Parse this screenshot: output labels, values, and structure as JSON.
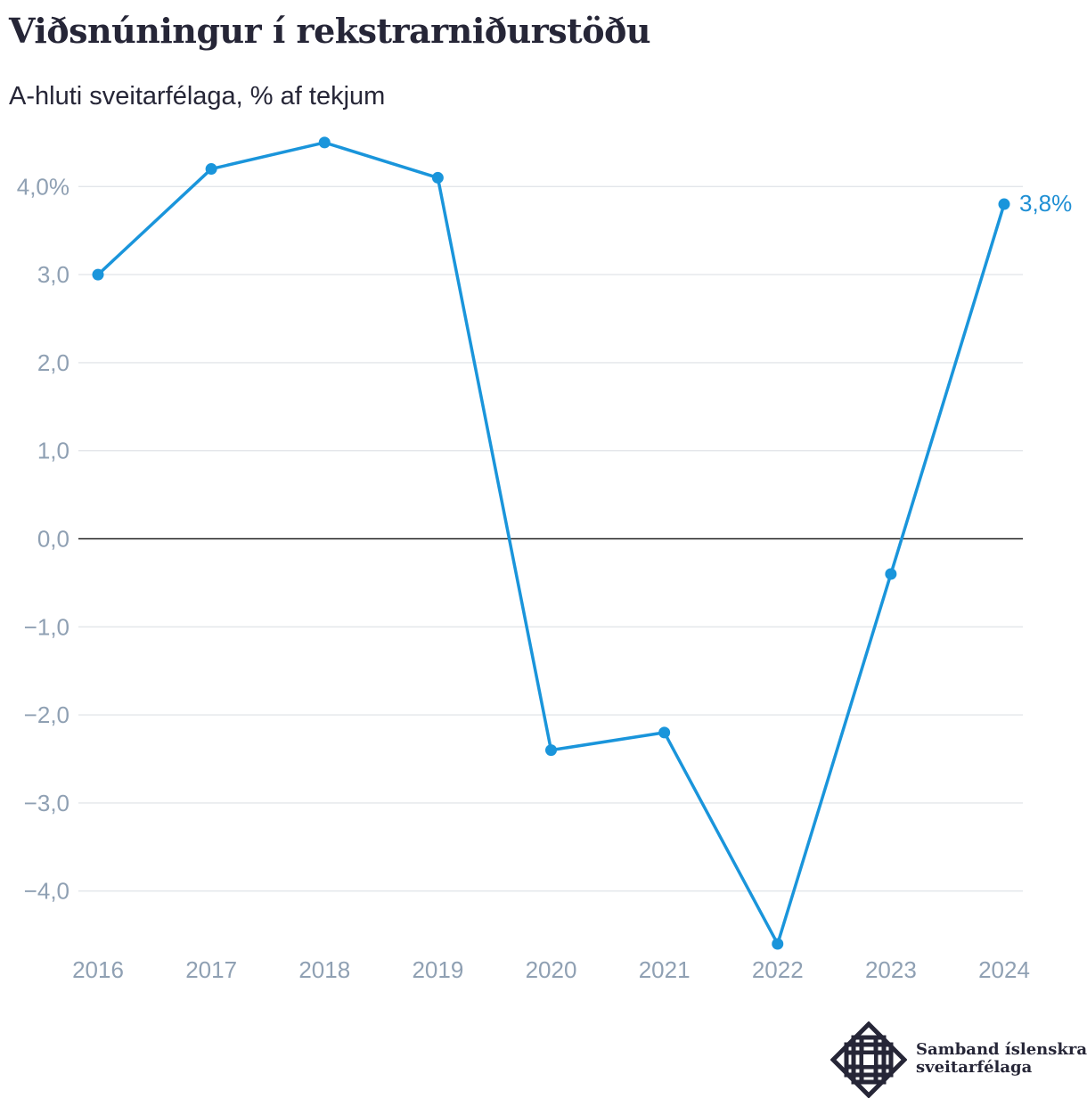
{
  "title": "Viðsnúningur í rekstrarniðurstöðu",
  "subtitle": "A-hluti sveitarfélaga, % af tekjum",
  "colors": {
    "line": "#1a95db",
    "grid": "#e3e6ea",
    "zero_line": "#222222",
    "tick_text": "#8fa0b3",
    "title_text": "#262637"
  },
  "chart_data": {
    "type": "line",
    "title": "Viðsnúningur í rekstrarniðurstöðu",
    "subtitle": "A-hluti sveitarfélaga, % af tekjum",
    "x": [
      "2016",
      "2017",
      "2018",
      "2019",
      "2020",
      "2021",
      "2022",
      "2023",
      "2024"
    ],
    "series": [
      {
        "values": [
          3.0,
          4.2,
          4.5,
          4.1,
          -2.4,
          -2.2,
          -4.6,
          -0.4,
          3.8
        ]
      }
    ],
    "ylim": [
      -4.6,
      4.5
    ],
    "yticks": [
      4,
      3,
      2,
      1,
      0,
      -1,
      -2,
      -3,
      -4
    ],
    "ytick_labels": [
      "4,0%",
      "3,0",
      "2,0",
      "1,0",
      "0,0",
      "−1,0",
      "−2,0",
      "−3,0",
      "−4,0"
    ],
    "end_label": "3,8%",
    "grid": true,
    "legend": "none"
  },
  "logo": {
    "line1": "Samband íslenskra",
    "line2": "sveitarfélaga"
  }
}
